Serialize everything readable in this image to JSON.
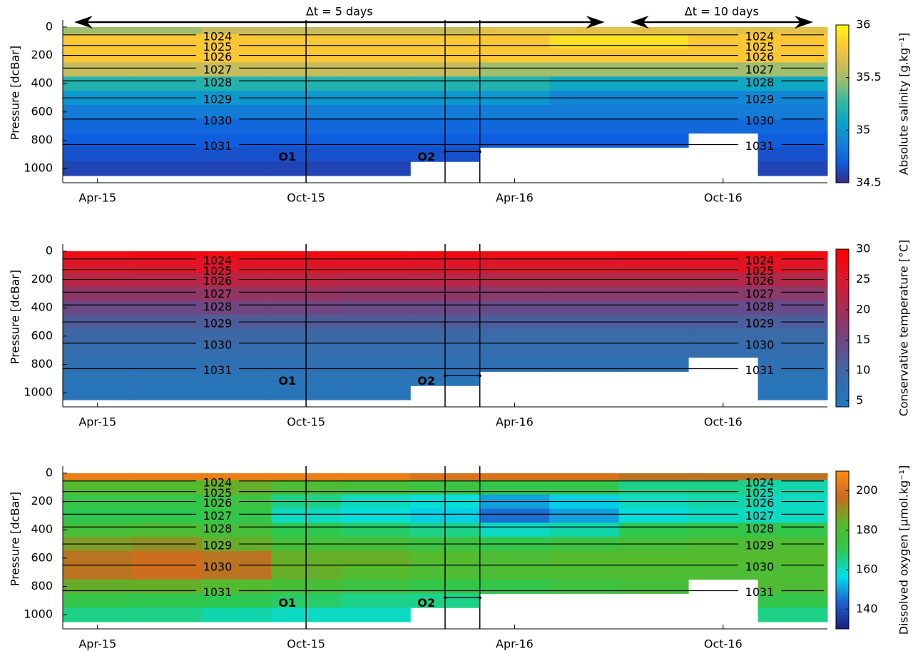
{
  "chart_data": [
    {
      "type": "heatmap",
      "ylabel": "Pressure [dcBar]",
      "colorbar_label": "Absolute salinity [g.kg⁻¹]",
      "x": [
        "2015-03",
        "2015-05",
        "2015-07",
        "2015-09",
        "2015-11",
        "2016-01",
        "2016-03",
        "2016-05",
        "2016-07",
        "2016-09",
        "2016-11"
      ],
      "depths": [
        0,
        100,
        200,
        300,
        400,
        500,
        600,
        700,
        800,
        900,
        1000
      ],
      "values": [
        [
          35.5,
          35.5,
          35.6,
          35.6,
          35.6,
          35.6,
          35.7,
          35.7,
          35.7,
          35.7,
          35.7
        ],
        [
          35.8,
          35.8,
          35.8,
          35.8,
          35.8,
          35.8,
          35.8,
          35.9,
          35.9,
          35.8,
          35.8
        ],
        [
          35.8,
          35.8,
          35.8,
          35.8,
          35.8,
          35.8,
          35.8,
          35.8,
          35.8,
          35.8,
          35.8
        ],
        [
          35.6,
          35.6,
          35.6,
          35.6,
          35.6,
          35.6,
          35.5,
          35.5,
          35.5,
          35.5,
          35.5
        ],
        [
          35.2,
          35.2,
          35.2,
          35.2,
          35.2,
          35.2,
          35.2,
          35.1,
          35.1,
          35.1,
          35.1
        ],
        [
          35,
          35,
          35,
          35,
          35,
          35,
          35,
          34.9,
          34.9,
          34.9,
          34.9
        ],
        [
          34.85,
          34.85,
          34.85,
          34.85,
          34.85,
          34.85,
          34.85,
          34.85,
          34.85,
          34.85,
          34.85
        ],
        [
          34.75,
          34.75,
          34.75,
          34.75,
          34.75,
          34.75,
          34.75,
          34.75,
          34.75,
          34.75,
          34.75
        ],
        [
          34.7,
          34.7,
          34.7,
          34.7,
          34.7,
          34.7,
          34.7,
          34.7,
          34.7,
          null,
          34.7
        ],
        [
          34.65,
          34.65,
          34.65,
          34.65,
          34.65,
          34.65,
          null,
          null,
          null,
          null,
          34.65
        ],
        [
          34.6,
          34.6,
          34.6,
          34.6,
          34.6,
          null,
          null,
          null,
          null,
          null,
          34.6
        ]
      ],
      "xlim": [
        "2015-03",
        "2017-01"
      ],
      "xticks": [
        {
          "value": "2015-04",
          "label": "Apr-15"
        },
        {
          "value": "2015-10",
          "label": "Oct-15"
        },
        {
          "value": "2016-04",
          "label": "Apr-16"
        },
        {
          "value": "2016-10",
          "label": "Oct-16"
        }
      ],
      "ylim": [
        -50,
        1100
      ],
      "y_reversed": true,
      "yticks": [
        0,
        200,
        400,
        600,
        800,
        1000
      ],
      "clim": [
        34.5,
        36
      ],
      "cticks": [
        34.5,
        35,
        35.5,
        36
      ],
      "colormap": [
        "#352a87",
        "#0f5cdd",
        "#1481d6",
        "#06a4ca",
        "#2eb7a4",
        "#87bf77",
        "#d1bb59",
        "#fec832",
        "#f9fb0e"
      ],
      "contours": {
        "levels": [
          1024,
          1025,
          1026,
          1027,
          1028,
          1029,
          1030,
          1031
        ],
        "depths": [
          55,
          130,
          200,
          290,
          380,
          500,
          650,
          830
        ],
        "color": "#000000"
      },
      "markers": [
        {
          "label": "O1",
          "x": [
            "2015-10"
          ]
        },
        {
          "label": "O2",
          "x": [
            "2016-02",
            "2016-03"
          ]
        }
      ],
      "annotations": [
        {
          "text": "Δt = 5 days",
          "x": [
            "2015-03",
            "2016-07"
          ]
        },
        {
          "text": "Δt = 10 days",
          "x": [
            "2016-07",
            "2017-01"
          ]
        }
      ]
    },
    {
      "type": "heatmap",
      "ylabel": "Pressure [dcBar]",
      "colorbar_label": "Conservative temperature [°C]",
      "x": [
        "2015-03",
        "2015-05",
        "2015-07",
        "2015-09",
        "2015-11",
        "2016-01",
        "2016-03",
        "2016-05",
        "2016-07",
        "2016-09",
        "2016-11"
      ],
      "depths": [
        0,
        100,
        200,
        300,
        400,
        500,
        600,
        700,
        800,
        900,
        1000
      ],
      "values": [
        [
          27.5,
          27.8,
          28,
          28,
          28,
          27.8,
          27.5,
          27.5,
          27.8,
          28,
          28
        ],
        [
          25.5,
          25.8,
          26,
          26,
          26,
          25.8,
          25.5,
          25.5,
          25.8,
          26,
          26
        ],
        [
          22,
          22,
          22.5,
          22.5,
          22,
          22,
          21.5,
          21.5,
          21.5,
          21.5,
          21.5
        ],
        [
          18,
          18,
          18.5,
          18.5,
          18,
          18,
          17.5,
          17.5,
          17.5,
          17.5,
          17.5
        ],
        [
          14.5,
          14.5,
          15,
          15,
          14.5,
          14.5,
          14,
          14,
          14,
          14,
          14
        ],
        [
          11.5,
          11.5,
          11.5,
          11.5,
          11.5,
          11.5,
          11,
          11,
          11,
          11,
          11
        ],
        [
          9.5,
          9.5,
          9.5,
          9.5,
          9.5,
          9.5,
          9,
          9,
          9,
          9,
          9
        ],
        [
          8,
          8,
          8,
          8,
          8,
          8,
          8,
          8,
          8,
          8,
          8
        ],
        [
          7,
          7,
          7,
          7,
          7,
          7,
          7,
          7,
          7,
          null,
          7
        ],
        [
          6,
          6,
          6,
          6,
          6,
          6,
          null,
          null,
          null,
          null,
          6
        ],
        [
          5.5,
          5.5,
          5.5,
          5.5,
          5.5,
          null,
          null,
          null,
          null,
          null,
          5.5
        ]
      ],
      "xlim": [
        "2015-03",
        "2017-01"
      ],
      "xticks": [
        {
          "value": "2015-04",
          "label": "Apr-15"
        },
        {
          "value": "2015-10",
          "label": "Oct-15"
        },
        {
          "value": "2016-04",
          "label": "Apr-16"
        },
        {
          "value": "2016-10",
          "label": "Oct-16"
        }
      ],
      "ylim": [
        -50,
        1100
      ],
      "y_reversed": true,
      "yticks": [
        0,
        200,
        400,
        600,
        800,
        1000
      ],
      "clim": [
        4,
        30
      ],
      "cticks": [
        5,
        10,
        15,
        20,
        25,
        30
      ],
      "colormap": [
        "#1f78c0",
        "#3a6aa8",
        "#6a4a88",
        "#a02f58",
        "#d81a30",
        "#ff0000"
      ],
      "contours": {
        "levels": [
          1024,
          1025,
          1026,
          1027,
          1028,
          1029,
          1030,
          1031
        ],
        "depths": [
          55,
          130,
          200,
          290,
          380,
          500,
          650,
          830
        ],
        "color": "#000000"
      },
      "markers": [
        {
          "label": "O1",
          "x": [
            "2015-10"
          ]
        },
        {
          "label": "O2",
          "x": [
            "2016-02",
            "2016-03"
          ]
        }
      ]
    },
    {
      "type": "heatmap",
      "ylabel": "Pressure [dcBar]",
      "colorbar_label": "Dissolved oxygen [μmol.kg⁻¹]",
      "x": [
        "2015-03",
        "2015-05",
        "2015-07",
        "2015-09",
        "2015-11",
        "2016-01",
        "2016-03",
        "2016-05",
        "2016-07",
        "2016-09",
        "2016-11"
      ],
      "depths": [
        0,
        100,
        200,
        300,
        400,
        500,
        600,
        700,
        800,
        900,
        1000
      ],
      "values": [
        [
          205,
          205,
          205,
          205,
          205,
          200,
          200,
          200,
          195,
          195,
          195
        ],
        [
          182,
          182,
          185,
          180,
          178,
          175,
          172,
          172,
          165,
          165,
          162
        ],
        [
          172,
          172,
          175,
          165,
          160,
          158,
          150,
          155,
          160,
          162,
          160
        ],
        [
          170,
          170,
          172,
          160,
          158,
          155,
          145,
          150,
          158,
          160,
          160
        ],
        [
          178,
          180,
          178,
          170,
          168,
          165,
          160,
          162,
          170,
          172,
          172
        ],
        [
          188,
          190,
          185,
          178,
          178,
          175,
          172,
          175,
          178,
          180,
          180
        ],
        [
          195,
          198,
          195,
          185,
          185,
          182,
          180,
          182,
          182,
          182,
          182
        ],
        [
          195,
          198,
          195,
          185,
          182,
          180,
          180,
          180,
          180,
          180,
          180
        ],
        [
          185,
          185,
          182,
          178,
          175,
          172,
          172,
          175,
          178,
          null,
          180
        ],
        [
          172,
          170,
          170,
          168,
          165,
          165,
          null,
          null,
          null,
          null,
          172
        ],
        [
          165,
          165,
          162,
          160,
          160,
          null,
          null,
          null,
          null,
          null,
          165
        ]
      ],
      "xlim": [
        "2015-03",
        "2017-01"
      ],
      "xticks": [
        {
          "value": "2015-04",
          "label": "Apr-15"
        },
        {
          "value": "2015-10",
          "label": "Oct-15"
        },
        {
          "value": "2016-04",
          "label": "Apr-16"
        },
        {
          "value": "2016-10",
          "label": "Oct-16"
        }
      ],
      "ylim": [
        -50,
        1100
      ],
      "y_reversed": true,
      "yticks": [
        0,
        200,
        400,
        600,
        800,
        1000
      ],
      "clim": [
        130,
        210
      ],
      "cticks": [
        140,
        160,
        180,
        200
      ],
      "colormap": [
        "#1a2080",
        "#1f5fd0",
        "#00e0e8",
        "#2ec850",
        "#58b82a",
        "#c86a20",
        "#ff8c10"
      ],
      "contours": {
        "levels": [
          1024,
          1025,
          1026,
          1027,
          1028,
          1029,
          1030,
          1031
        ],
        "depths": [
          55,
          130,
          200,
          290,
          380,
          500,
          650,
          830
        ],
        "color": "#000000"
      },
      "markers": [
        {
          "label": "O1",
          "x": [
            "2015-10"
          ]
        },
        {
          "label": "O2",
          "x": [
            "2016-02",
            "2016-03"
          ]
        }
      ]
    }
  ]
}
